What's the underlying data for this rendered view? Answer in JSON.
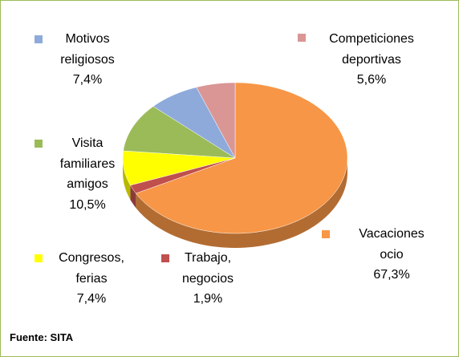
{
  "chart_data": {
    "type": "pie",
    "categories": [
      "Vacaciones ocio",
      "Trabajo, negocios",
      "Congresos, ferias",
      "Visita familiares amigos",
      "Motivos religiosos",
      "Competiciones deportivas"
    ],
    "values": [
      67.3,
      1.9,
      7.4,
      10.5,
      7.4,
      5.6
    ],
    "value_labels": [
      "67,3%",
      "1,9%",
      "7,4%",
      "10,5%",
      "7,4%",
      "5,6%"
    ],
    "colors": [
      "#f79646",
      "#c0504d",
      "#ffff00",
      "#9bbb59",
      "#8eaadb",
      "#d99694"
    ]
  },
  "source": "Fuente: SITA"
}
